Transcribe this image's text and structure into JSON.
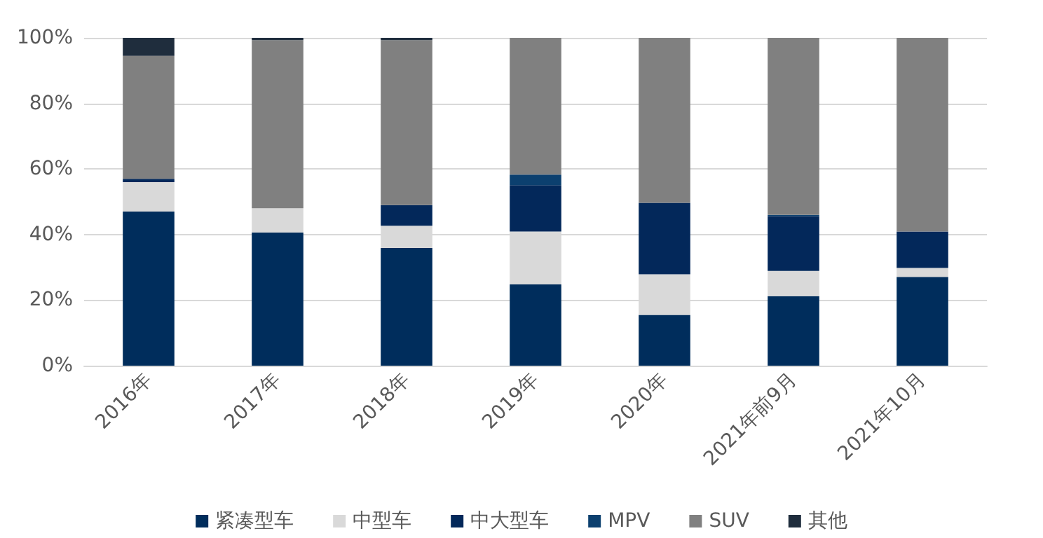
{
  "chart_data": {
    "type": "bar",
    "stacked": true,
    "categories": [
      "2016年",
      "2017年",
      "2018年",
      "2019年",
      "2020年",
      "2021年前9月",
      "2021年10月"
    ],
    "series": [
      {
        "name": "紧凑型车",
        "color": "#002d5c",
        "values": [
          47,
          40.6,
          35.9,
          24.8,
          15.5,
          21.2,
          27.1
        ]
      },
      {
        "name": "中型车",
        "color": "#d9d9d9",
        "values": [
          9,
          7.4,
          6.8,
          16.1,
          12.4,
          7.7,
          2.7
        ]
      },
      {
        "name": "中大型车",
        "color": "#03285a",
        "values": [
          1,
          0,
          6.3,
          14.2,
          21.8,
          16.7,
          11.1
        ]
      },
      {
        "name": "MPV",
        "color": "#0c406f",
        "values": [
          0,
          0,
          0,
          3.2,
          0,
          0.4,
          0
        ]
      },
      {
        "name": "SUV",
        "color": "#808080",
        "values": [
          37.5,
          51.3,
          50.3,
          41.7,
          50.3,
          54,
          59.1
        ]
      },
      {
        "name": "其他",
        "color": "#1f2d3d",
        "values": [
          5.5,
          0.7,
          0.7,
          0,
          0,
          0,
          0
        ]
      }
    ],
    "ylim": [
      0,
      100
    ],
    "yticks": [
      {
        "value": 0,
        "label": "0%"
      },
      {
        "value": 20,
        "label": "20%"
      },
      {
        "value": 40,
        "label": "40%"
      },
      {
        "value": 60,
        "label": "60%"
      },
      {
        "value": 80,
        "label": "80%"
      },
      {
        "value": 100,
        "label": "100%"
      }
    ],
    "grid": "y",
    "legend": "bottom"
  }
}
